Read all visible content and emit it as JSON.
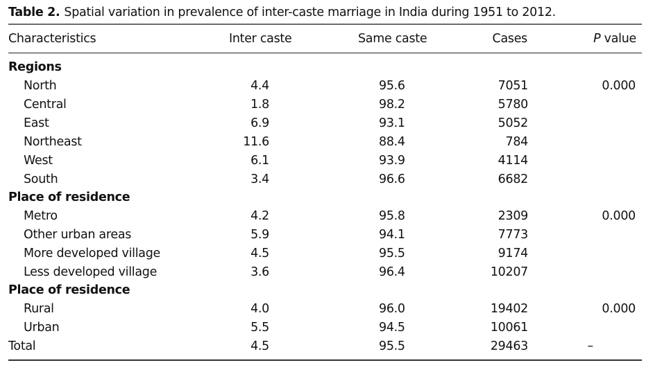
{
  "caption": {
    "label": "Table 2.",
    "text": "Spatial variation in prevalence of inter-caste marriage in India during 1951 to 2012."
  },
  "header": {
    "characteristics": "Characteristics",
    "inter_caste": "Inter caste",
    "same_caste": "Same caste",
    "cases": "Cases",
    "p_italic": "P",
    "p_rest": " value"
  },
  "groups": [
    {
      "title": "Regions",
      "rows": [
        {
          "label": "North",
          "inter": "4.4",
          "same": "95.6",
          "cases": "7051",
          "p": "0.000"
        },
        {
          "label": "Central",
          "inter": "1.8",
          "same": "98.2",
          "cases": "5780",
          "p": ""
        },
        {
          "label": "East",
          "inter": "6.9",
          "same": "93.1",
          "cases": "5052",
          "p": ""
        },
        {
          "label": "Northeast",
          "inter": "11.6",
          "same": "88.4",
          "cases": "784",
          "p": ""
        },
        {
          "label": "West",
          "inter": "6.1",
          "same": "93.9",
          "cases": "4114",
          "p": ""
        },
        {
          "label": "South",
          "inter": "3.4",
          "same": "96.6",
          "cases": "6682",
          "p": ""
        }
      ]
    },
    {
      "title": "Place of residence",
      "rows": [
        {
          "label": "Metro",
          "inter": "4.2",
          "same": "95.8",
          "cases": "2309",
          "p": "0.000"
        },
        {
          "label": "Other urban areas",
          "inter": "5.9",
          "same": "94.1",
          "cases": "7773",
          "p": ""
        },
        {
          "label": "More developed village",
          "inter": "4.5",
          "same": "95.5",
          "cases": "9174",
          "p": ""
        },
        {
          "label": "Less developed village",
          "inter": "3.6",
          "same": "96.4",
          "cases": "10207",
          "p": ""
        }
      ]
    },
    {
      "title": "Place of residence",
      "rows": [
        {
          "label": "Rural",
          "inter": "4.0",
          "same": "96.0",
          "cases": "19402",
          "p": "0.000"
        },
        {
          "label": "Urban",
          "inter": "5.5",
          "same": "94.5",
          "cases": "10061",
          "p": ""
        }
      ]
    }
  ],
  "total": {
    "label": "Total",
    "inter": "4.5",
    "same": "95.5",
    "cases": "29463",
    "p": "–"
  }
}
